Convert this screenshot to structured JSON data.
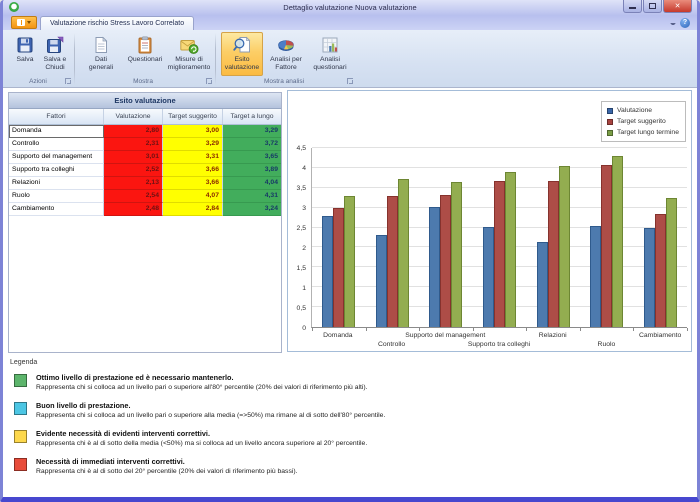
{
  "window": {
    "title": "Dettaglio valutazione Nuova valutazione",
    "tab": "Valutazione rischio Stress Lavoro Correlato"
  },
  "ribbon": {
    "groups": [
      {
        "label": "Azioni",
        "buttons": [
          {
            "label": "Salva"
          },
          {
            "label": "Salva e Chiudi"
          }
        ]
      },
      {
        "label": "Mostra",
        "buttons": [
          {
            "label": "Dati generali"
          },
          {
            "label": "Questionari"
          },
          {
            "label": "Misure di miglioramento"
          }
        ]
      },
      {
        "label": "Mostra analisi",
        "buttons": [
          {
            "label": "Esito valutazione",
            "selected": true
          },
          {
            "label": "Analisi per Fattore"
          },
          {
            "label": "Analisi questionari"
          }
        ]
      }
    ]
  },
  "table": {
    "title": "Esito valutazione",
    "columns": [
      "Fattori",
      "Valutazione",
      "Target suggerito",
      "Target a lungo"
    ],
    "rows": [
      {
        "factor": "Domanda",
        "valutazione": "2,80",
        "target_suggerito": "3,00",
        "target_lungo": "3,29"
      },
      {
        "factor": "Controllo",
        "valutazione": "2,31",
        "target_suggerito": "3,29",
        "target_lungo": "3,72"
      },
      {
        "factor": "Supporto del management",
        "valutazione": "3,01",
        "target_suggerito": "3,31",
        "target_lungo": "3,65"
      },
      {
        "factor": "Supporto tra colleghi",
        "valutazione": "2,52",
        "target_suggerito": "3,66",
        "target_lungo": "3,89"
      },
      {
        "factor": "Relazioni",
        "valutazione": "2,13",
        "target_suggerito": "3,66",
        "target_lungo": "4,04"
      },
      {
        "factor": "Ruolo",
        "valutazione": "2,54",
        "target_suggerito": "4,07",
        "target_lungo": "4,31"
      },
      {
        "factor": "Cambiamento",
        "valutazione": "2,48",
        "target_suggerito": "2,84",
        "target_lungo": "3,24"
      }
    ]
  },
  "chart_data": {
    "type": "bar",
    "title": "",
    "xlabel": "",
    "ylabel": "",
    "categories": [
      "Domanda",
      "Controllo",
      "Supporto del management",
      "Supporto tra colleghi",
      "Relazioni",
      "Ruolo",
      "Cambiamento"
    ],
    "series": [
      {
        "name": "Valutazione",
        "color": "#4d7aae",
        "border": "#2f5a8c",
        "values": [
          2.8,
          2.31,
          3.01,
          2.52,
          2.13,
          2.54,
          2.48
        ]
      },
      {
        "name": "Target suggerito",
        "color": "#ad4d47",
        "border": "#86322d",
        "values": [
          3.0,
          3.29,
          3.31,
          3.66,
          3.66,
          4.07,
          2.84
        ]
      },
      {
        "name": "Target lungo termine",
        "color": "#93ad50",
        "border": "#6d8633",
        "values": [
          3.29,
          3.72,
          3.65,
          3.89,
          4.04,
          4.31,
          3.24
        ]
      }
    ],
    "ylim": [
      0,
      4.5
    ],
    "ytick_step": 0.5,
    "ytick_labels": [
      "0",
      "0,5",
      "1",
      "1,5",
      "2",
      "2,5",
      "3",
      "3,5",
      "4",
      "4,5"
    ],
    "grid": true,
    "legend_position": "top-right"
  },
  "legend": {
    "heading": "Legenda",
    "items": [
      {
        "color": "#5db56c",
        "title": "Ottimo livello di prestazione ed è necessario mantenerlo.",
        "description": "Rappresenta chi si colloca ad un livello pari o superiore all'80° percentile (20% dei valori di riferimento più alti)."
      },
      {
        "color": "#4cc6e4",
        "title": "Buon livello di prestazione.",
        "description": "Rappresenta chi si colloca ad un livello pari o superiore alla media (=>50%) ma rimane al di sotto dell'80° percentile."
      },
      {
        "color": "#fdd84c",
        "title": "Evidente necessità di evidenti interventi correttivi.",
        "description": "Rappresenta chi è al di sotto della media (<50%) ma si colloca ad un livello ancora superiore al 20° percentile."
      },
      {
        "color": "#e84c3a",
        "title": "Necessità di immediati interventi correttivi.",
        "description": "Rappresenta chi è al di sotto del 20° percentile (20% dei valori di riferimento più bassi)."
      }
    ]
  }
}
